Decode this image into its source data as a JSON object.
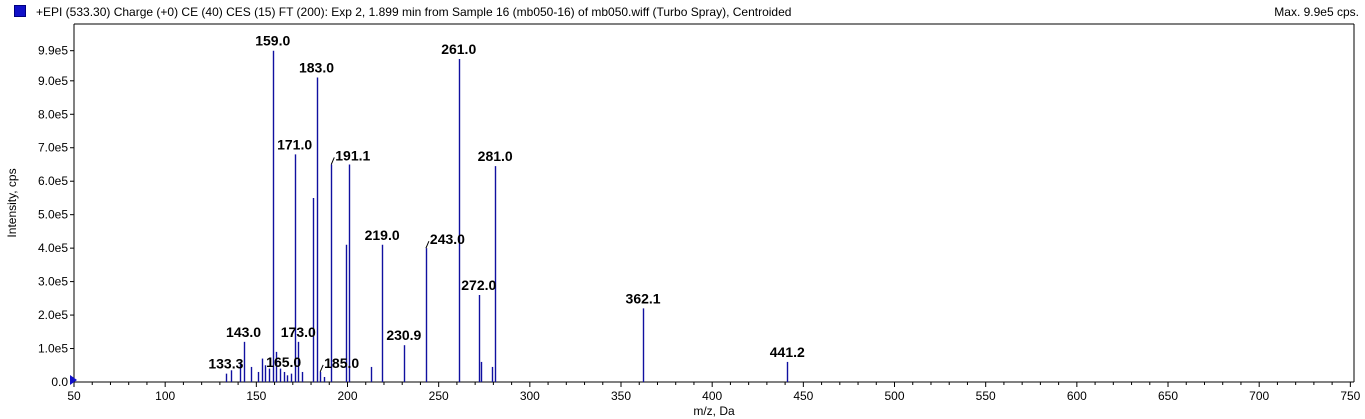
{
  "header": {
    "title": "+EPI (533.30) Charge (+0) CE (40) CES (15) FT (200): Exp 2, 1.899 min from Sample 16 (mb050-16) of mb050.wiff (Turbo Spray), Centroided",
    "max_label": "Max. 9.9e5 cps."
  },
  "colors": {
    "series": "#1010a0",
    "legend_swatch": "#1010c8",
    "axis": "#000000"
  },
  "chart_data": {
    "type": "bar",
    "xlabel": "m/z, Da",
    "ylabel": "Intensity, cps",
    "xlim": [
      50,
      752
    ],
    "ylim": [
      0,
      1010000
    ],
    "xticks": [
      50,
      100,
      150,
      200,
      250,
      300,
      350,
      400,
      450,
      500,
      550,
      600,
      650,
      700,
      750
    ],
    "yticks": [
      {
        "value": 0,
        "label": "0.0"
      },
      {
        "value": 100000,
        "label": "1.0e5"
      },
      {
        "value": 200000,
        "label": "2.0e5"
      },
      {
        "value": 300000,
        "label": "3.0e5"
      },
      {
        "value": 400000,
        "label": "4.0e5"
      },
      {
        "value": 500000,
        "label": "5.0e5"
      },
      {
        "value": 600000,
        "label": "6.0e5"
      },
      {
        "value": 700000,
        "label": "7.0e5"
      },
      {
        "value": 800000,
        "label": "8.0e5"
      },
      {
        "value": 900000,
        "label": "9.0e5"
      },
      {
        "value": 990000,
        "label": "9.9e5"
      }
    ],
    "peaks": [
      {
        "x": 133.3,
        "y": 25000
      },
      {
        "x": 136.0,
        "y": 35000
      },
      {
        "x": 141.0,
        "y": 60000
      },
      {
        "x": 143.0,
        "y": 120000
      },
      {
        "x": 147.0,
        "y": 45000
      },
      {
        "x": 151.0,
        "y": 30000
      },
      {
        "x": 153.0,
        "y": 70000
      },
      {
        "x": 155.0,
        "y": 50000
      },
      {
        "x": 157.0,
        "y": 40000
      },
      {
        "x": 159.0,
        "y": 990000
      },
      {
        "x": 161.0,
        "y": 90000
      },
      {
        "x": 163.0,
        "y": 40000
      },
      {
        "x": 165.0,
        "y": 30000
      },
      {
        "x": 167.0,
        "y": 20000
      },
      {
        "x": 169.0,
        "y": 25000
      },
      {
        "x": 171.0,
        "y": 680000
      },
      {
        "x": 173.0,
        "y": 120000
      },
      {
        "x": 175.0,
        "y": 30000
      },
      {
        "x": 181.0,
        "y": 550000
      },
      {
        "x": 183.0,
        "y": 910000
      },
      {
        "x": 185.0,
        "y": 30000
      },
      {
        "x": 187.0,
        "y": 15000
      },
      {
        "x": 191.1,
        "y": 650000
      },
      {
        "x": 199.0,
        "y": 410000
      },
      {
        "x": 201.0,
        "y": 650000
      },
      {
        "x": 213.0,
        "y": 45000
      },
      {
        "x": 219.0,
        "y": 410000
      },
      {
        "x": 230.9,
        "y": 110000
      },
      {
        "x": 243.0,
        "y": 400000
      },
      {
        "x": 261.0,
        "y": 965000
      },
      {
        "x": 272.0,
        "y": 260000
      },
      {
        "x": 273.0,
        "y": 60000
      },
      {
        "x": 279.0,
        "y": 45000
      },
      {
        "x": 281.0,
        "y": 645000
      },
      {
        "x": 362.1,
        "y": 220000
      },
      {
        "x": 441.2,
        "y": 60000
      }
    ],
    "peak_labels": [
      {
        "text": "133.3",
        "x": 133.3,
        "y": 25000,
        "leader": false
      },
      {
        "text": "143.0",
        "x": 143.0,
        "y": 120000,
        "leader": false
      },
      {
        "text": "159.0",
        "x": 159.0,
        "y": 990000,
        "leader": false
      },
      {
        "text": "165.0",
        "x": 165.0,
        "y": 30000,
        "leader": false
      },
      {
        "text": "171.0",
        "x": 171.0,
        "y": 680000,
        "leader": false
      },
      {
        "text": "173.0",
        "x": 173.0,
        "y": 120000,
        "leader": false
      },
      {
        "text": "183.0",
        "x": 183.0,
        "y": 910000,
        "leader": false
      },
      {
        "text": "185.0",
        "x": 185.0,
        "y": 30000,
        "leader": true
      },
      {
        "text": "191.1",
        "x": 191.1,
        "y": 650000,
        "leader": true
      },
      {
        "text": "219.0",
        "x": 219.0,
        "y": 410000,
        "leader": false
      },
      {
        "text": "230.9",
        "x": 230.9,
        "y": 110000,
        "leader": false
      },
      {
        "text": "243.0",
        "x": 243.0,
        "y": 400000,
        "leader": true
      },
      {
        "text": "261.0",
        "x": 261.0,
        "y": 965000,
        "leader": false
      },
      {
        "text": "272.0",
        "x": 272.0,
        "y": 260000,
        "leader": false
      },
      {
        "text": "281.0",
        "x": 281.0,
        "y": 645000,
        "leader": false
      },
      {
        "text": "362.1",
        "x": 362.1,
        "y": 220000,
        "leader": false
      },
      {
        "text": "441.2",
        "x": 441.2,
        "y": 60000,
        "leader": false
      }
    ]
  }
}
